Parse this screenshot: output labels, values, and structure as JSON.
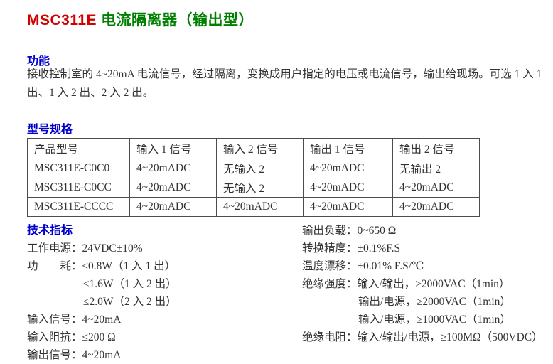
{
  "title": {
    "model": "MSC311E",
    "name": "电流隔离器（输出型）"
  },
  "colors": {
    "model_red": "#d20000",
    "name_green": "#008000",
    "heading_blue": "#0000cc",
    "body_text": "#333333",
    "table_border": "#4d4d4d"
  },
  "sections": {
    "function": {
      "heading": "功能",
      "lines": [
        "接收控制室的 4~20mA 电流信号，经过隔离，变换成用户指定的电压或电流信号，输出给现场。可选 1 入 1",
        "出、1 入 2 出、2 入 2 出。"
      ]
    },
    "model_spec": {
      "heading": "型号规格",
      "table": {
        "headers": [
          "产品型号",
          "输入 1 信号",
          "输入 2 信号",
          "输出 1 信号",
          "输出 2 信号"
        ],
        "rows": [
          [
            "MSC311E-C0C0",
            "4~20mADC",
            "无输入 2",
            "4~20mADC",
            "无输出 2"
          ],
          [
            "MSC311E-C0CC",
            "4~20mADC",
            "无输入 2",
            "4~20mADC",
            "4~20mADC"
          ],
          [
            "MSC311E-CCCC",
            "4~20mADC",
            "4~20mADC",
            "4~20mADC",
            "4~20mADC"
          ]
        ]
      }
    },
    "tech_spec": {
      "heading": "技术指标",
      "left": [
        "工作电源：24VDC±10%",
        "功　　耗：≤0.8W（1 入 1 出）",
        "≤1.6W（1 入 2 出）",
        "≤2.0W（2 入 2 出）",
        "输入信号：4~20mA",
        "输入阻抗：≤200 Ω",
        "输出信号：4~20mA"
      ],
      "right": [
        "输出负载：0~650 Ω",
        "转换精度：±0.1%F.S",
        "温度漂移：±0.01% F.S/℃",
        "绝缘强度：输入/输出，≥2000VAC（1min）",
        "输出/电源，≥2000VAC（1min）",
        "输入/电源，≥1000VAC（1min）",
        "绝缘电阻：输入/输出/电源，≥100MΩ（500VDC）"
      ]
    }
  }
}
